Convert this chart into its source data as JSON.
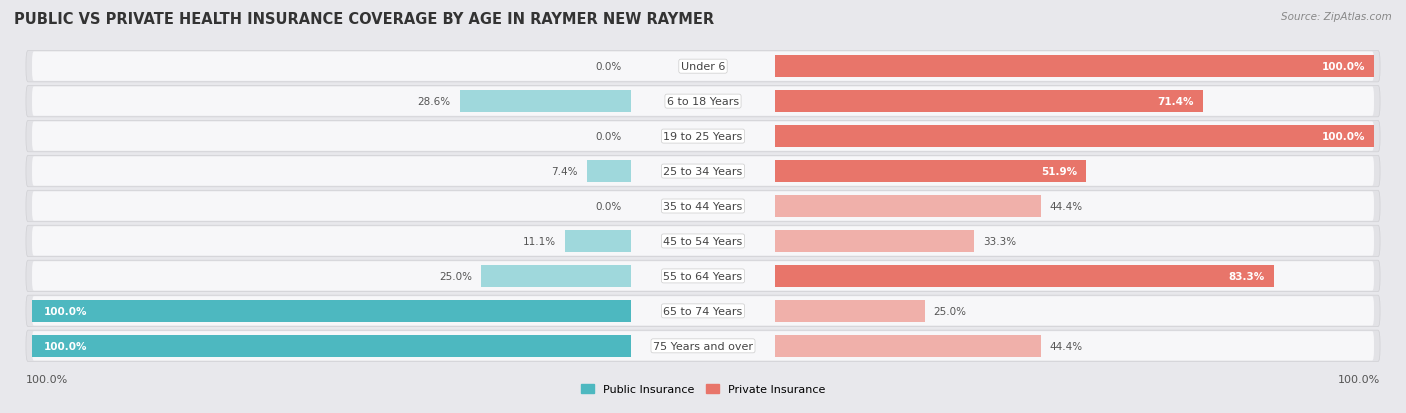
{
  "title": "PUBLIC VS PRIVATE HEALTH INSURANCE COVERAGE BY AGE IN RAYMER NEW RAYMER",
  "source": "Source: ZipAtlas.com",
  "categories": [
    "Under 6",
    "6 to 18 Years",
    "19 to 25 Years",
    "25 to 34 Years",
    "35 to 44 Years",
    "45 to 54 Years",
    "55 to 64 Years",
    "65 to 74 Years",
    "75 Years and over"
  ],
  "public_values": [
    0.0,
    28.6,
    0.0,
    7.4,
    0.0,
    11.1,
    25.0,
    100.0,
    100.0
  ],
  "private_values": [
    100.0,
    71.4,
    100.0,
    51.9,
    44.4,
    33.3,
    83.3,
    25.0,
    44.4
  ],
  "public_color": "#4db8c0",
  "private_color": "#e8756a",
  "public_color_light": "#9fd8dc",
  "private_color_light": "#f0b0aa",
  "row_bg_color": "#f0f0f2",
  "row_inner_color": "#f8f8fa",
  "bg_color": "#e8e8ec",
  "max_val": 100.0,
  "title_fontsize": 10.5,
  "label_fontsize": 8.0,
  "tick_fontsize": 8.0,
  "value_fontsize": 7.5
}
